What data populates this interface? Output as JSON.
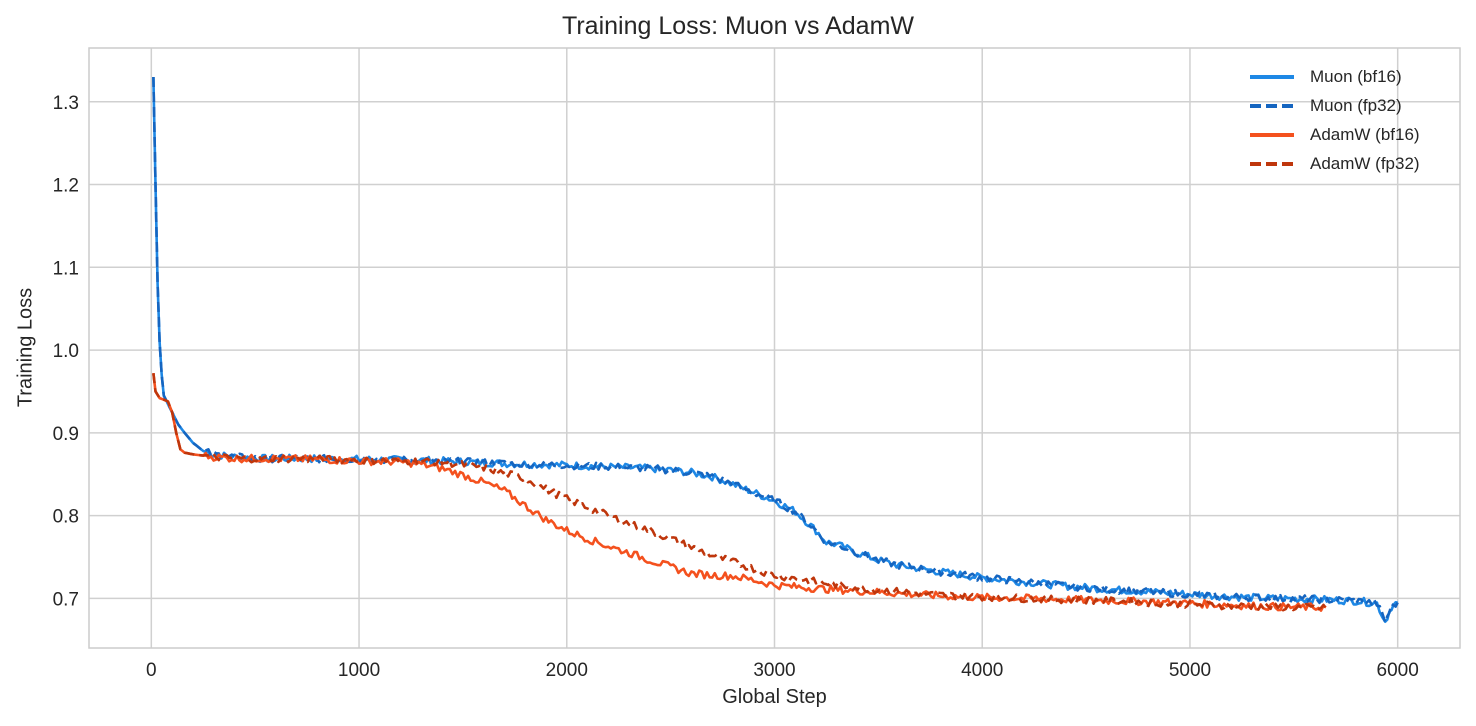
{
  "chart_data": {
    "type": "line",
    "title": "Training Loss: Muon vs AdamW",
    "xlabel": "Global Step",
    "ylabel": "Training Loss",
    "xlim": [
      -300,
      6300
    ],
    "ylim": [
      0.64,
      1.365
    ],
    "xticks": [
      0,
      1000,
      2000,
      3000,
      4000,
      5000,
      6000
    ],
    "yticks": [
      0.7,
      0.8,
      0.9,
      1.0,
      1.1,
      1.2,
      1.3
    ],
    "ytick_labels": [
      "0.7",
      "0.8",
      "0.9",
      "1.0",
      "1.1",
      "1.2",
      "1.3"
    ],
    "grid": true,
    "legend_position": "upper right",
    "series": [
      {
        "name": "Muon (bf16)",
        "color": "#1E88E5",
        "style": "solid",
        "x": [
          10,
          20,
          30,
          40,
          50,
          60,
          80,
          100,
          130,
          160,
          200,
          250,
          300,
          400,
          500,
          700,
          1000,
          1300,
          1500,
          1700,
          2000,
          2200,
          2400,
          2500,
          2600,
          2700,
          2800,
          2900,
          3000,
          3100,
          3200,
          3250,
          3300,
          3400,
          3500,
          3600,
          3800,
          4000,
          4200,
          4400,
          4600,
          4800,
          5000,
          5200,
          5400,
          5600,
          5800,
          5900,
          5940,
          5970,
          6000
        ],
        "y": [
          1.33,
          1.2,
          1.08,
          1.01,
          0.97,
          0.945,
          0.935,
          0.925,
          0.91,
          0.9,
          0.888,
          0.878,
          0.874,
          0.871,
          0.869,
          0.869,
          0.868,
          0.867,
          0.865,
          0.863,
          0.861,
          0.859,
          0.857,
          0.855,
          0.852,
          0.847,
          0.838,
          0.828,
          0.818,
          0.805,
          0.782,
          0.768,
          0.765,
          0.755,
          0.746,
          0.74,
          0.732,
          0.725,
          0.72,
          0.715,
          0.711,
          0.708,
          0.705,
          0.702,
          0.7,
          0.699,
          0.697,
          0.694,
          0.672,
          0.69,
          0.695
        ]
      },
      {
        "name": "Muon (fp32)",
        "color": "#1565C0",
        "style": "dashed",
        "x": [
          10,
          20,
          30,
          40,
          50,
          60,
          80,
          100,
          130,
          160,
          200,
          250,
          300,
          400,
          500,
          700,
          1000,
          1300,
          1500,
          1700,
          2000,
          2200,
          2400,
          2500,
          2600,
          2700,
          2800,
          2900,
          3000,
          3100,
          3200,
          3250,
          3300,
          3400,
          3500,
          3600,
          3800,
          4000,
          4200,
          4400,
          4600,
          4800,
          5000,
          5200,
          5400,
          5600,
          5800,
          5900,
          5940,
          5970,
          6000
        ],
        "y": [
          1.33,
          1.2,
          1.08,
          1.01,
          0.97,
          0.945,
          0.935,
          0.925,
          0.91,
          0.9,
          0.888,
          0.878,
          0.874,
          0.871,
          0.869,
          0.869,
          0.868,
          0.867,
          0.865,
          0.863,
          0.861,
          0.859,
          0.857,
          0.855,
          0.852,
          0.847,
          0.838,
          0.828,
          0.818,
          0.805,
          0.782,
          0.768,
          0.765,
          0.755,
          0.746,
          0.74,
          0.732,
          0.725,
          0.72,
          0.715,
          0.711,
          0.708,
          0.705,
          0.702,
          0.7,
          0.699,
          0.697,
          0.694,
          0.672,
          0.69,
          0.695
        ]
      },
      {
        "name": "AdamW (bf16)",
        "color": "#F4511E",
        "style": "solid",
        "x": [
          10,
          20,
          40,
          60,
          80,
          100,
          120,
          140,
          160,
          200,
          300,
          400,
          600,
          800,
          1000,
          1200,
          1300,
          1400,
          1500,
          1600,
          1700,
          1800,
          1900,
          2000,
          2100,
          2200,
          2300,
          2400,
          2500,
          2600,
          2700,
          2800,
          2900,
          3000,
          3200,
          3400,
          3600,
          3800,
          4000,
          4200,
          4500,
          4800,
          5000,
          5200,
          5400,
          5655
        ],
        "y": [
          0.972,
          0.95,
          0.942,
          0.94,
          0.938,
          0.925,
          0.9,
          0.88,
          0.876,
          0.874,
          0.871,
          0.869,
          0.869,
          0.868,
          0.866,
          0.865,
          0.862,
          0.857,
          0.849,
          0.84,
          0.83,
          0.812,
          0.795,
          0.782,
          0.772,
          0.763,
          0.755,
          0.746,
          0.738,
          0.73,
          0.728,
          0.727,
          0.722,
          0.716,
          0.712,
          0.709,
          0.706,
          0.703,
          0.701,
          0.7,
          0.698,
          0.696,
          0.694,
          0.692,
          0.69,
          0.689
        ]
      },
      {
        "name": "AdamW (fp32)",
        "color": "#BF360C",
        "style": "dashed",
        "x": [
          10,
          20,
          40,
          60,
          80,
          100,
          120,
          140,
          160,
          200,
          300,
          400,
          600,
          800,
          1000,
          1200,
          1400,
          1600,
          1800,
          1900,
          2000,
          2100,
          2200,
          2300,
          2400,
          2500,
          2600,
          2700,
          2800,
          2900,
          3000,
          3200,
          3400,
          3600,
          3800,
          4000,
          4200,
          4500,
          4800,
          5000,
          5200,
          5400,
          5655
        ],
        "y": [
          0.972,
          0.95,
          0.942,
          0.94,
          0.938,
          0.925,
          0.9,
          0.88,
          0.876,
          0.874,
          0.871,
          0.869,
          0.869,
          0.868,
          0.867,
          0.866,
          0.865,
          0.858,
          0.845,
          0.832,
          0.82,
          0.81,
          0.8,
          0.79,
          0.782,
          0.772,
          0.762,
          0.752,
          0.744,
          0.736,
          0.728,
          0.72,
          0.713,
          0.708,
          0.704,
          0.702,
          0.7,
          0.698,
          0.695,
          0.693,
          0.691,
          0.69,
          0.688
        ]
      }
    ]
  },
  "colors": {
    "grid": "#d0d0d0",
    "spine": "#cccccc",
    "text": "#262626",
    "background": "#ffffff"
  }
}
